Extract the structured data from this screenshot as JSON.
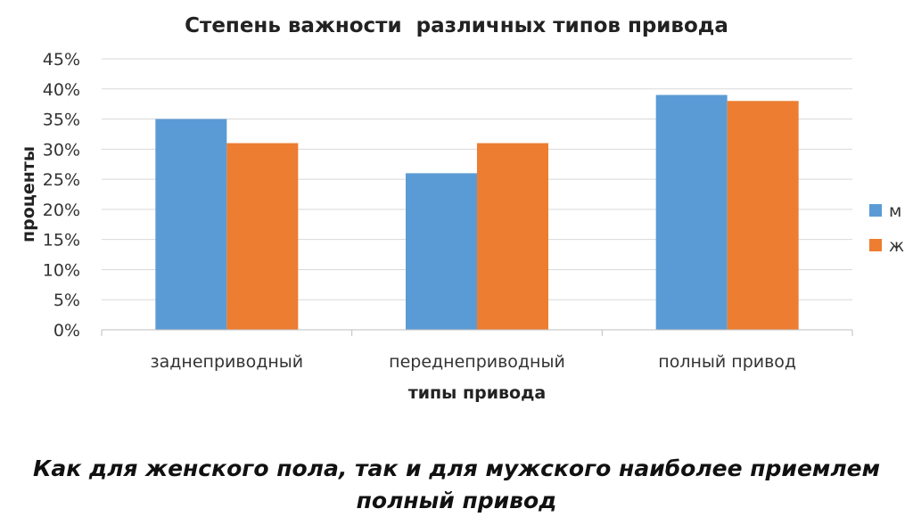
{
  "chart_data": {
    "type": "bar",
    "title": "Степень важности  различных типов привода",
    "xlabel": "типы привода",
    "ylabel": "проценты",
    "categories": [
      "заднеприводный",
      "переднеприводный",
      "полный привод"
    ],
    "series": [
      {
        "name": "м",
        "color": "#5B9BD5",
        "values": [
          35,
          26,
          39
        ]
      },
      {
        "name": "ж",
        "color": "#ED7D31",
        "values": [
          31,
          31,
          38
        ]
      }
    ],
    "ylim": [
      0,
      45
    ],
    "yticks": [
      "0%",
      "5%",
      "10%",
      "15%",
      "20%",
      "25%",
      "30%",
      "35%",
      "40%",
      "45%"
    ],
    "grid": true,
    "legend": "right"
  },
  "caption": {
    "line1": "Как для женского пола, так и для мужского наиболее приемлем",
    "line2": "полный привод"
  }
}
